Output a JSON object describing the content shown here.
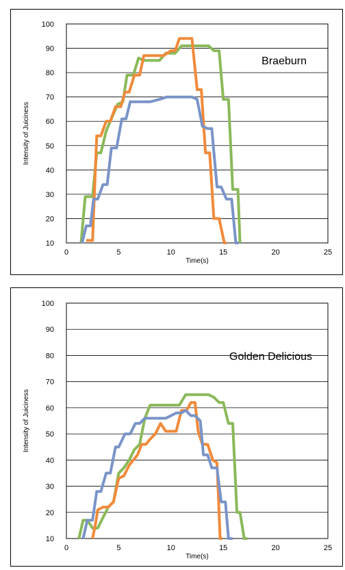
{
  "chart_data": [
    {
      "type": "line",
      "annotation": "Braeburn",
      "xlabel": "Time(s)",
      "ylabel": "Intensity of Juiciness",
      "xlim": [
        0,
        25
      ],
      "ylim": [
        10,
        100
      ],
      "xticks": [
        0,
        5,
        10,
        15,
        20,
        25
      ],
      "yticks": [
        10,
        20,
        30,
        40,
        50,
        60,
        70,
        80,
        90,
        100
      ],
      "grid": true,
      "series": [
        {
          "color": "#8ab959",
          "x": [
            1.4,
            1.8,
            2.5,
            2.9,
            3.3,
            3.8,
            4.2,
            4.9,
            5.4,
            5.8,
            6.4,
            6.9,
            7.4,
            7.8,
            8.4,
            8.9,
            9.5,
            10.0,
            10.4,
            11.0,
            11.5,
            12.0,
            12.6,
            13.2,
            13.6,
            14.1,
            14.6,
            15.0,
            15.5,
            15.9,
            16.4,
            16.6
          ],
          "y": [
            10,
            29,
            29,
            47,
            47,
            56,
            60,
            67,
            68,
            79,
            79,
            86,
            85,
            85,
            85,
            85,
            88,
            88,
            88,
            91,
            91,
            91,
            91,
            91,
            91,
            89,
            89,
            69,
            69,
            32,
            32,
            10
          ]
        },
        {
          "color": "#f08a3a",
          "x": [
            1.9,
            2.5,
            2.9,
            3.3,
            3.8,
            4.2,
            4.7,
            5.2,
            5.6,
            6.0,
            6.5,
            7.0,
            7.4,
            7.8,
            8.4,
            9.3,
            10.0,
            10.4,
            10.8,
            11.3,
            12.0,
            12.5,
            12.9,
            13.3,
            13.7,
            14.1,
            14.6,
            15.1,
            15.3
          ],
          "y": [
            11,
            11,
            54,
            54,
            60,
            60,
            66,
            66,
            72,
            72,
            79,
            79,
            87,
            87,
            87,
            87,
            89,
            89,
            94,
            94,
            94,
            73,
            73,
            47,
            47,
            20,
            20,
            10,
            10
          ]
        },
        {
          "color": "#7a94c8",
          "x": [
            1.5,
            1.9,
            2.3,
            2.6,
            3.0,
            3.5,
            3.9,
            4.3,
            4.8,
            5.3,
            5.7,
            6.1,
            6.6,
            7.0,
            7.4,
            8.0,
            8.9,
            9.6,
            10.2,
            10.8,
            11.5,
            12.0,
            12.5,
            13.0,
            13.5,
            13.9,
            14.4,
            14.8,
            15.3,
            15.8,
            16.2,
            16.5
          ],
          "y": [
            10,
            17,
            17,
            28,
            28,
            34,
            34,
            49,
            49,
            61,
            61,
            68,
            68,
            68,
            68,
            68,
            69,
            70,
            70,
            70,
            70,
            70,
            69,
            58,
            57,
            57,
            33,
            33,
            28,
            28,
            10,
            10
          ]
        }
      ]
    },
    {
      "type": "line",
      "annotation": "Golden Delicious",
      "xlabel": "Time(s)",
      "ylabel": "Intensity of Juiciness",
      "xlim": [
        0,
        25
      ],
      "ylim": [
        10,
        100
      ],
      "xticks": [
        0,
        5,
        10,
        15,
        20,
        25
      ],
      "yticks": [
        10,
        20,
        30,
        40,
        50,
        60,
        70,
        80,
        90,
        100
      ],
      "grid": true,
      "series": [
        {
          "color": "#8ab959",
          "x": [
            1.2,
            1.6,
            2.0,
            2.5,
            3.0,
            3.5,
            4.0,
            4.5,
            5.0,
            5.5,
            6.0,
            6.5,
            7.0,
            7.5,
            8.0,
            8.5,
            9.3,
            10.0,
            10.8,
            11.4,
            12.0,
            12.6,
            13.2,
            13.6,
            14.1,
            14.6,
            15.0,
            15.5,
            15.9,
            16.3,
            16.6,
            17.0,
            17.3
          ],
          "y": [
            10,
            17,
            17,
            14,
            14,
            18,
            22,
            24,
            35,
            37,
            40,
            44,
            46,
            56,
            61,
            61,
            61,
            61,
            61,
            65,
            65,
            65,
            65,
            65,
            64,
            62,
            62,
            54,
            54,
            20,
            20,
            10,
            10
          ]
        },
        {
          "color": "#f08a3a",
          "x": [
            2.5,
            2.8,
            3.0,
            3.5,
            4.0,
            4.5,
            5.0,
            5.5,
            6.0,
            6.4,
            6.8,
            7.2,
            7.6,
            8.0,
            8.5,
            9.0,
            9.5,
            10.0,
            10.5,
            11.0,
            11.5,
            11.9,
            12.3,
            12.6,
            13.0,
            13.5,
            14.0,
            14.4,
            14.7,
            14.9
          ],
          "y": [
            10,
            16,
            21,
            22,
            22,
            24,
            33,
            34,
            38,
            40,
            42,
            46,
            46,
            48,
            50,
            54,
            51,
            51,
            51,
            59,
            59,
            62,
            62,
            51,
            46,
            46,
            40,
            39,
            10,
            10
          ]
        },
        {
          "color": "#7a94c8",
          "x": [
            1.6,
            2.0,
            2.5,
            2.9,
            3.3,
            3.8,
            4.2,
            4.7,
            5.0,
            5.6,
            6.1,
            6.6,
            7.0,
            7.5,
            7.9,
            8.4,
            9.0,
            9.5,
            10.0,
            10.5,
            11.0,
            11.4,
            11.9,
            12.3,
            12.8,
            13.1,
            13.5,
            13.9,
            14.4,
            14.8,
            15.2,
            15.5,
            15.9
          ],
          "y": [
            10,
            17,
            17,
            28,
            28,
            35,
            35,
            45,
            45,
            50,
            50,
            54,
            54,
            56,
            56,
            56,
            56,
            56,
            57,
            58,
            58,
            59,
            57,
            57,
            55,
            42,
            42,
            37,
            37,
            24,
            24,
            10,
            10
          ]
        }
      ]
    }
  ]
}
